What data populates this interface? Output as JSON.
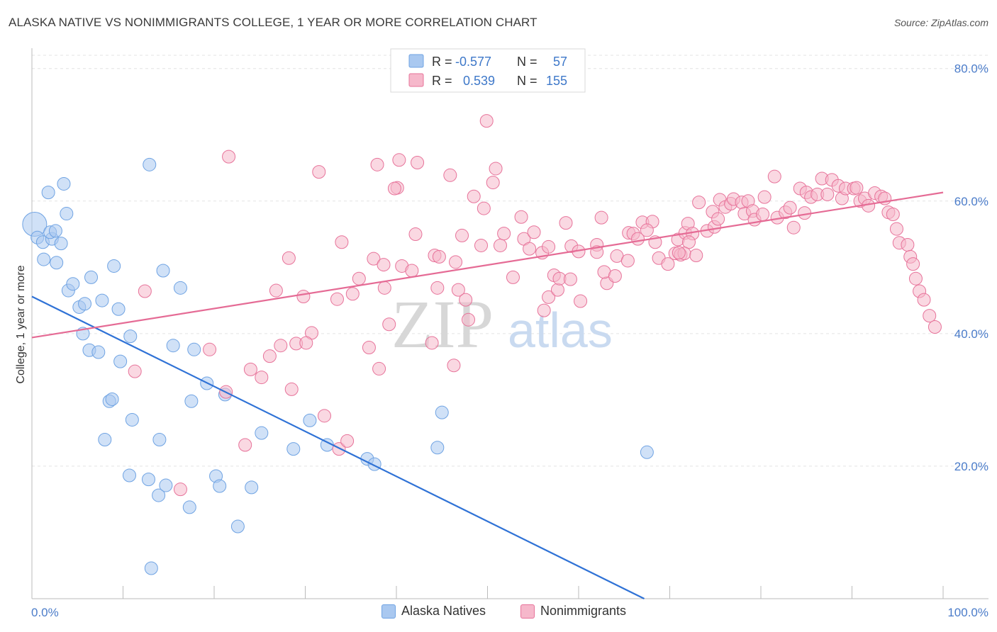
{
  "header": {
    "title": "ALASKA NATIVE VS NONIMMIGRANTS COLLEGE, 1 YEAR OR MORE CORRELATION CHART",
    "source": "Source: ZipAtlas.com"
  },
  "watermark": {
    "zip": "ZIP",
    "atlas": "atlas"
  },
  "stats_legend": {
    "rows": [
      {
        "r_label": "R =",
        "r_value": "-0.577",
        "n_label": "N =",
        "n_value": "57",
        "color": "#a9c8f0"
      },
      {
        "r_label": "R =",
        "r_value": "0.539",
        "n_label": "N =",
        "n_value": "155",
        "color": "#f6b8cb"
      }
    ]
  },
  "bottom_legend": {
    "items": [
      {
        "label": "Alaska Natives",
        "color": "#a9c8f0"
      },
      {
        "label": "Nonimmigrants",
        "color": "#f6b8cb"
      }
    ]
  },
  "chart_data": {
    "type": "scatter",
    "title": "ALASKA NATIVE VS NONIMMIGRANTS COLLEGE, 1 YEAR OR MORE CORRELATION CHART",
    "ylabel": "College, 1 year or more",
    "xlabel": "",
    "xlim": [
      0,
      100
    ],
    "ylim": [
      0,
      82
    ],
    "x_tick_labels": [
      "0.0%",
      "100.0%"
    ],
    "y_ticks": [
      20,
      40,
      60,
      80
    ],
    "y_tick_labels": [
      "20.0%",
      "40.0%",
      "60.0%",
      "80.0%"
    ],
    "grid": true,
    "legend_position": "top-center",
    "series": [
      {
        "name": "Alaska Natives",
        "color": "#6fa3e3",
        "fill": "#a9c8f0",
        "trend": {
          "x": [
            0,
            67.2
          ],
          "y": [
            45.6,
            0
          ]
        },
        "points": [
          [
            0.3,
            56.5
          ],
          [
            0.6,
            54.5
          ],
          [
            1.2,
            53.8
          ],
          [
            1.3,
            51.2
          ],
          [
            1.8,
            61.3
          ],
          [
            2.2,
            54.3
          ],
          [
            2.7,
            50.7
          ],
          [
            3.2,
            53.6
          ],
          [
            3.5,
            62.6
          ],
          [
            3.8,
            58.1
          ],
          [
            2.0,
            55.3
          ],
          [
            2.6,
            55.5
          ],
          [
            4.0,
            46.5
          ],
          [
            4.5,
            47.5
          ],
          [
            5.2,
            44.0
          ],
          [
            5.8,
            44.5
          ],
          [
            5.6,
            40.0
          ],
          [
            6.5,
            48.5
          ],
          [
            6.3,
            37.5
          ],
          [
            7.3,
            37.2
          ],
          [
            7.7,
            45.0
          ],
          [
            9.0,
            50.2
          ],
          [
            9.5,
            43.7
          ],
          [
            9.7,
            35.8
          ],
          [
            8.5,
            29.8
          ],
          [
            8.8,
            30.1
          ],
          [
            10.8,
            39.6
          ],
          [
            11.0,
            27.0
          ],
          [
            8.0,
            24.0
          ],
          [
            14.4,
            49.5
          ],
          [
            15.5,
            38.2
          ],
          [
            14.0,
            24.0
          ],
          [
            12.9,
            65.5
          ],
          [
            16.3,
            46.9
          ],
          [
            17.5,
            29.8
          ],
          [
            17.8,
            37.6
          ],
          [
            19.2,
            32.5
          ],
          [
            21.2,
            30.8
          ],
          [
            10.7,
            18.6
          ],
          [
            12.8,
            18.0
          ],
          [
            13.9,
            15.6
          ],
          [
            14.7,
            17.1
          ],
          [
            17.3,
            13.8
          ],
          [
            20.2,
            18.5
          ],
          [
            20.6,
            17.0
          ],
          [
            22.6,
            10.9
          ],
          [
            24.1,
            16.8
          ],
          [
            25.2,
            25.0
          ],
          [
            28.7,
            22.6
          ],
          [
            30.5,
            26.9
          ],
          [
            32.4,
            23.2
          ],
          [
            36.8,
            21.1
          ],
          [
            37.6,
            20.3
          ],
          [
            44.5,
            22.8
          ],
          [
            45.0,
            28.1
          ],
          [
            67.5,
            22.1
          ],
          [
            13.1,
            4.6
          ]
        ]
      },
      {
        "name": "Nonimmigrants",
        "color": "#e7739a",
        "fill": "#f6b8cb",
        "trend": {
          "x": [
            0,
            100
          ],
          "y": [
            39.4,
            61.3
          ]
        },
        "points": [
          [
            11.3,
            34.3
          ],
          [
            12.4,
            46.4
          ],
          [
            16.3,
            16.5
          ],
          [
            19.5,
            37.6
          ],
          [
            21.3,
            31.2
          ],
          [
            21.6,
            66.7
          ],
          [
            24.0,
            34.6
          ],
          [
            25.2,
            33.4
          ],
          [
            26.1,
            36.6
          ],
          [
            26.8,
            46.5
          ],
          [
            28.5,
            31.6
          ],
          [
            29.0,
            38.5
          ],
          [
            27.3,
            38.2
          ],
          [
            28.2,
            51.4
          ],
          [
            29.8,
            45.6
          ],
          [
            30.7,
            40.1
          ],
          [
            30.1,
            38.6
          ],
          [
            32.1,
            27.6
          ],
          [
            31.5,
            64.4
          ],
          [
            33.5,
            45.2
          ],
          [
            34.0,
            53.8
          ],
          [
            35.2,
            46.0
          ],
          [
            33.7,
            22.6
          ],
          [
            34.6,
            23.8
          ],
          [
            35.9,
            48.3
          ],
          [
            37.0,
            37.9
          ],
          [
            37.5,
            51.3
          ],
          [
            38.1,
            34.7
          ],
          [
            38.6,
            50.4
          ],
          [
            38.7,
            46.9
          ],
          [
            37.9,
            65.5
          ],
          [
            39.2,
            41.4
          ],
          [
            40.1,
            62.0
          ],
          [
            39.8,
            61.9
          ],
          [
            40.3,
            66.2
          ],
          [
            40.6,
            50.2
          ],
          [
            42.1,
            55.0
          ],
          [
            42.3,
            65.8
          ],
          [
            41.7,
            49.5
          ],
          [
            23.4,
            23.2
          ],
          [
            44.2,
            51.8
          ],
          [
            43.9,
            38.6
          ],
          [
            44.5,
            46.9
          ],
          [
            44.7,
            51.6
          ],
          [
            45.9,
            63.9
          ],
          [
            46.8,
            46.6
          ],
          [
            46.5,
            50.8
          ],
          [
            46.3,
            35.2
          ],
          [
            47.6,
            45.1
          ],
          [
            47.2,
            54.8
          ],
          [
            47.9,
            42.1
          ],
          [
            48.5,
            60.7
          ],
          [
            49.3,
            53.3
          ],
          [
            49.6,
            58.9
          ],
          [
            49.9,
            72.1
          ],
          [
            50.6,
            62.8
          ],
          [
            50.9,
            64.9
          ],
          [
            51.4,
            53.3
          ],
          [
            51.8,
            55.1
          ],
          [
            52.8,
            48.5
          ],
          [
            53.7,
            57.6
          ],
          [
            54.0,
            54.3
          ],
          [
            54.6,
            52.8
          ],
          [
            55.1,
            55.3
          ],
          [
            56.0,
            52.2
          ],
          [
            56.2,
            43.5
          ],
          [
            56.7,
            53.1
          ],
          [
            56.7,
            45.5
          ],
          [
            57.3,
            48.8
          ],
          [
            57.7,
            46.6
          ],
          [
            57.9,
            48.3
          ],
          [
            59.2,
            53.2
          ],
          [
            58.6,
            56.7
          ],
          [
            60.2,
            44.9
          ],
          [
            59.1,
            48.2
          ],
          [
            60.0,
            52.4
          ],
          [
            62.0,
            53.4
          ],
          [
            62.5,
            57.5
          ],
          [
            62.0,
            52.3
          ],
          [
            63.1,
            47.6
          ],
          [
            62.8,
            49.3
          ],
          [
            64.0,
            48.7
          ],
          [
            64.2,
            51.7
          ],
          [
            65.4,
            51.0
          ],
          [
            65.5,
            55.2
          ],
          [
            66.0,
            55.1
          ],
          [
            66.5,
            54.3
          ],
          [
            67.0,
            56.8
          ],
          [
            68.1,
            56.9
          ],
          [
            67.5,
            55.6
          ],
          [
            68.4,
            53.8
          ],
          [
            68.8,
            51.4
          ],
          [
            69.8,
            50.5
          ],
          [
            70.6,
            52.1
          ],
          [
            70.9,
            54.2
          ],
          [
            71.2,
            51.9
          ],
          [
            71.7,
            55.2
          ],
          [
            72.0,
            56.6
          ],
          [
            72.5,
            55.1
          ],
          [
            72.1,
            53.8
          ],
          [
            71.6,
            52.1
          ],
          [
            71.0,
            52.2
          ],
          [
            72.9,
            51.8
          ],
          [
            73.2,
            59.8
          ],
          [
            74.1,
            55.5
          ],
          [
            74.7,
            58.4
          ],
          [
            74.9,
            56.1
          ],
          [
            75.3,
            57.3
          ],
          [
            75.5,
            60.2
          ],
          [
            76.1,
            59.1
          ],
          [
            76.7,
            59.6
          ],
          [
            77.0,
            60.3
          ],
          [
            77.9,
            59.8
          ],
          [
            78.2,
            58.1
          ],
          [
            78.6,
            60.0
          ],
          [
            79.1,
            58.5
          ],
          [
            79.3,
            57.2
          ],
          [
            80.2,
            58.0
          ],
          [
            80.4,
            60.6
          ],
          [
            81.5,
            63.7
          ],
          [
            81.8,
            57.5
          ],
          [
            82.7,
            58.3
          ],
          [
            83.2,
            59.0
          ],
          [
            83.6,
            56.0
          ],
          [
            84.3,
            61.9
          ],
          [
            84.8,
            58.2
          ],
          [
            85.0,
            61.3
          ],
          [
            85.5,
            60.6
          ],
          [
            86.2,
            61.0
          ],
          [
            86.7,
            63.4
          ],
          [
            87.3,
            61.0
          ],
          [
            87.8,
            63.2
          ],
          [
            88.5,
            62.3
          ],
          [
            88.9,
            60.4
          ],
          [
            89.3,
            61.9
          ],
          [
            90.2,
            61.9
          ],
          [
            90.5,
            62.0
          ],
          [
            90.9,
            60.0
          ],
          [
            91.4,
            60.4
          ],
          [
            91.8,
            59.3
          ],
          [
            92.5,
            61.2
          ],
          [
            93.2,
            60.7
          ],
          [
            93.6,
            60.4
          ],
          [
            94.0,
            58.3
          ],
          [
            94.5,
            58.0
          ],
          [
            94.9,
            55.8
          ],
          [
            95.2,
            53.7
          ],
          [
            96.1,
            53.4
          ],
          [
            96.4,
            51.6
          ],
          [
            96.7,
            50.5
          ],
          [
            97.0,
            48.3
          ],
          [
            97.4,
            46.4
          ],
          [
            97.9,
            45.1
          ],
          [
            98.5,
            42.7
          ],
          [
            99.1,
            41.0
          ]
        ]
      }
    ]
  }
}
